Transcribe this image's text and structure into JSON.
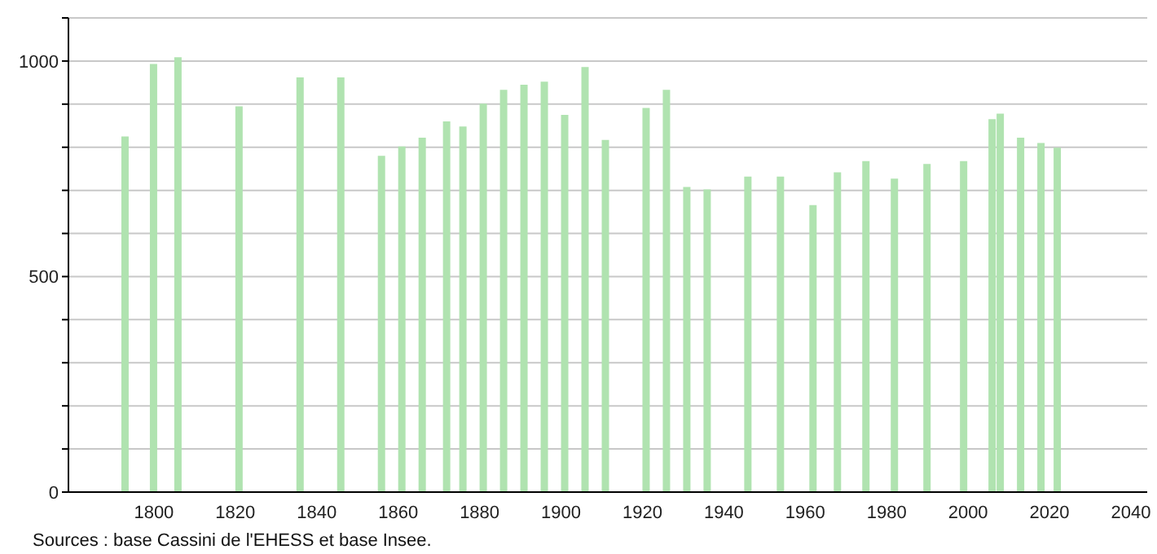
{
  "chart_data": {
    "type": "bar",
    "x": [
      1793,
      1800,
      1806,
      1821,
      1836,
      1846,
      1856,
      1861,
      1866,
      1872,
      1876,
      1881,
      1886,
      1891,
      1896,
      1901,
      1906,
      1911,
      1921,
      1926,
      1931,
      1936,
      1946,
      1954,
      1962,
      1968,
      1975,
      1982,
      1990,
      1999,
      2006,
      2008,
      2013,
      2018,
      2022
    ],
    "values": [
      825,
      993,
      1009,
      895,
      962,
      962,
      780,
      802,
      822,
      860,
      848,
      901,
      933,
      945,
      952,
      875,
      986,
      817,
      891,
      933,
      708,
      702,
      732,
      732,
      666,
      742,
      768,
      727,
      761,
      768,
      865,
      878,
      822,
      810,
      799
    ],
    "color": "#b0e3b0",
    "xlim": [
      1779,
      2044
    ],
    "xticks": [
      1800,
      1820,
      1840,
      1860,
      1880,
      1900,
      1920,
      1940,
      1960,
      1980,
      2000,
      2020,
      2040
    ],
    "ylim": [
      0,
      1100
    ],
    "yticks": [
      0,
      {
        "value": 100,
        "label": null
      },
      {
        "value": 200,
        "label": null
      },
      {
        "value": 300,
        "label": null
      },
      {
        "value": 400,
        "label": null
      },
      500,
      {
        "value": 600,
        "label": null
      },
      {
        "value": 700,
        "label": null
      },
      {
        "value": 800,
        "label": null
      },
      {
        "value": 900,
        "label": null
      },
      1000,
      {
        "value": 1100,
        "label": null
      }
    ],
    "grid": "y",
    "annotations": [
      "Sources : base Cassini de l'EHESS et base Insee."
    ]
  }
}
